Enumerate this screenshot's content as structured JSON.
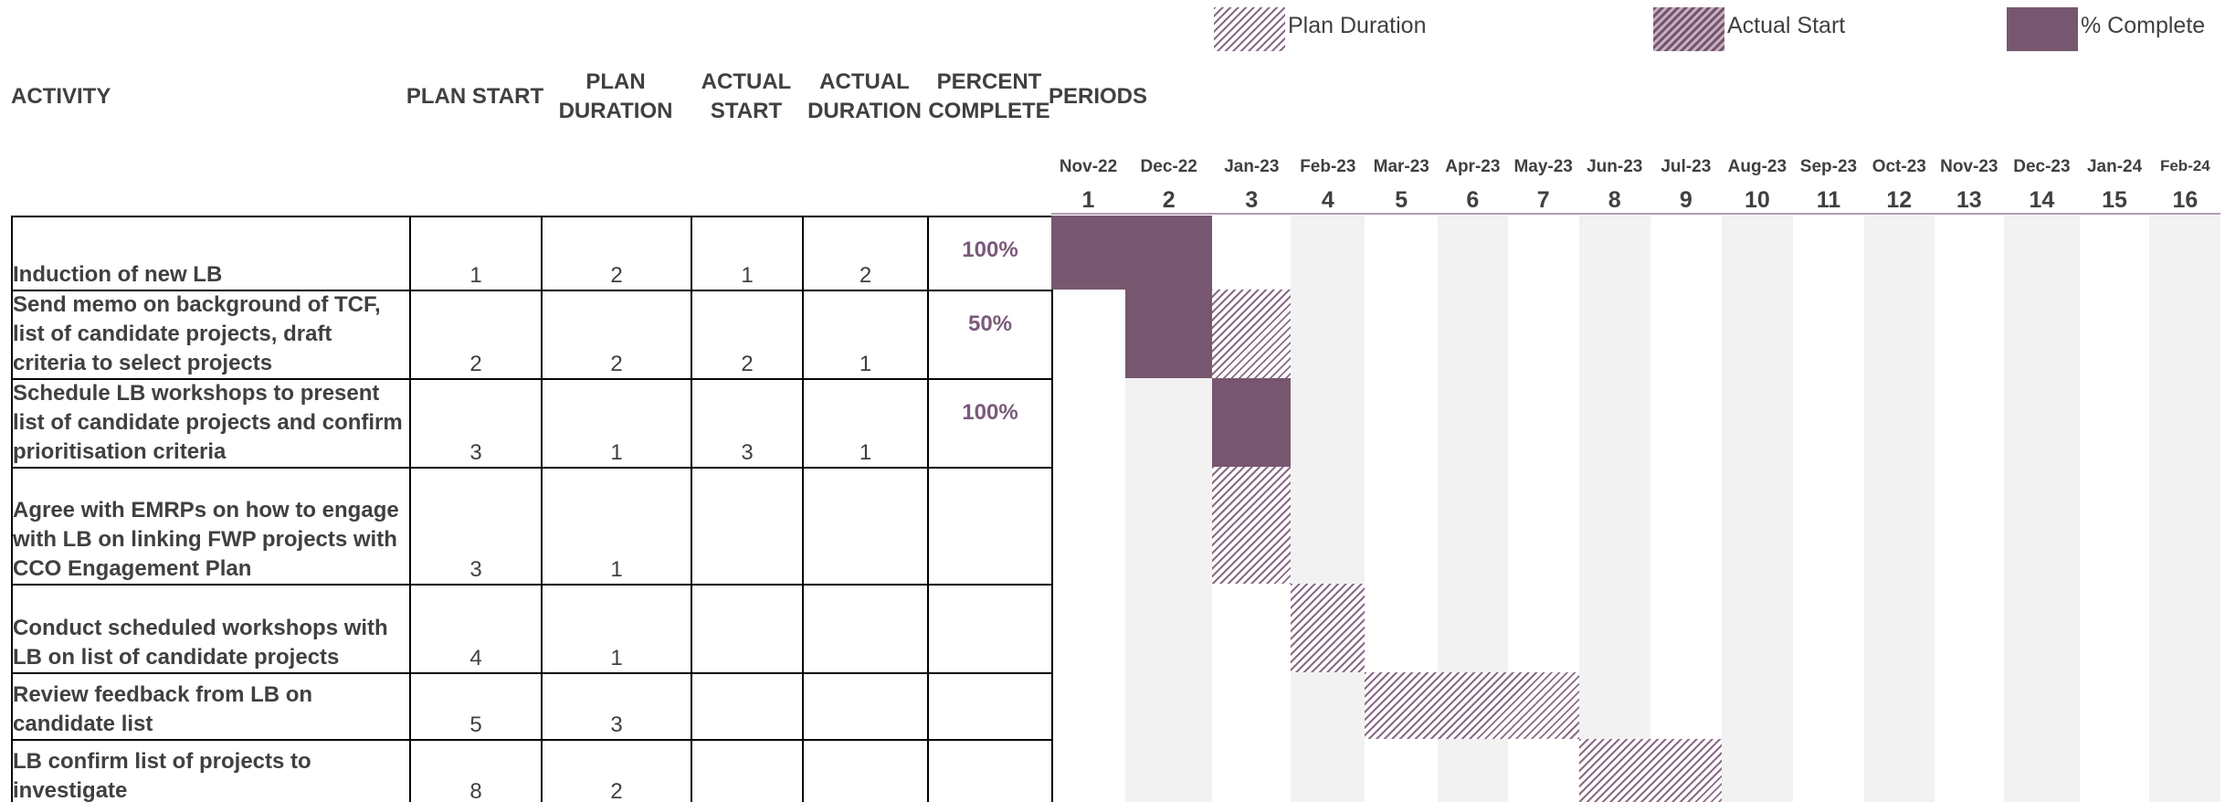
{
  "legend": [
    "Plan Duration",
    "Actual Start",
    "% Complete"
  ],
  "headers": {
    "activity": "ACTIVITY",
    "plan_start": "PLAN START",
    "plan_duration": "PLAN DURATION",
    "actual_start": "ACTUAL START",
    "actual_duration": "ACTUAL DURATION",
    "percent_complete": "PERCENT COMPLETE",
    "periods": "PERIODS"
  },
  "months": [
    "Nov-22",
    "Dec-22",
    "Jan-23",
    "Feb-23",
    "Mar-23",
    "Apr-23",
    "May-23",
    "Jun-23",
    "Jul-23",
    "Aug-23",
    "Sep-23",
    "Oct-23",
    "Nov-23",
    "Dec-23",
    "Jan-24",
    "Feb-24"
  ],
  "periods": [
    1,
    2,
    3,
    4,
    5,
    6,
    7,
    8,
    9,
    10,
    11,
    12,
    13,
    14,
    15,
    16
  ],
  "rows": [
    {
      "activity": "Induction of new LB",
      "plan_start": 1,
      "plan_duration": 2,
      "actual_start": 1,
      "actual_duration": 2,
      "percent_complete": "100%"
    },
    {
      "activity": "Send memo on background of TCF, list of candidate projects, draft criteria to select projects",
      "plan_start": 2,
      "plan_duration": 2,
      "actual_start": 2,
      "actual_duration": 1,
      "percent_complete": "50%"
    },
    {
      "activity": "Schedule LB workshops to present list of candidate projects and confirm prioritisation criteria",
      "plan_start": 3,
      "plan_duration": 1,
      "actual_start": 3,
      "actual_duration": 1,
      "percent_complete": "100%"
    },
    {
      "activity": "Agree with EMRPs on how to engage with LB on linking FWP projects with CCO Engagement Plan",
      "plan_start": 3,
      "plan_duration": 1,
      "actual_start": null,
      "actual_duration": null,
      "percent_complete": null
    },
    {
      "activity": "Conduct scheduled workshops with LB on list of candidate projects",
      "plan_start": 4,
      "plan_duration": 1,
      "actual_start": null,
      "actual_duration": null,
      "percent_complete": null
    },
    {
      "activity": "Review feedback from LB on candidate list",
      "plan_start": 5,
      "plan_duration": 3,
      "actual_start": null,
      "actual_duration": null,
      "percent_complete": null
    },
    {
      "activity": "LB confirm list of projects to investigate",
      "plan_start": 8,
      "plan_duration": 2,
      "actual_start": null,
      "actual_duration": null,
      "percent_complete": null
    }
  ]
}
